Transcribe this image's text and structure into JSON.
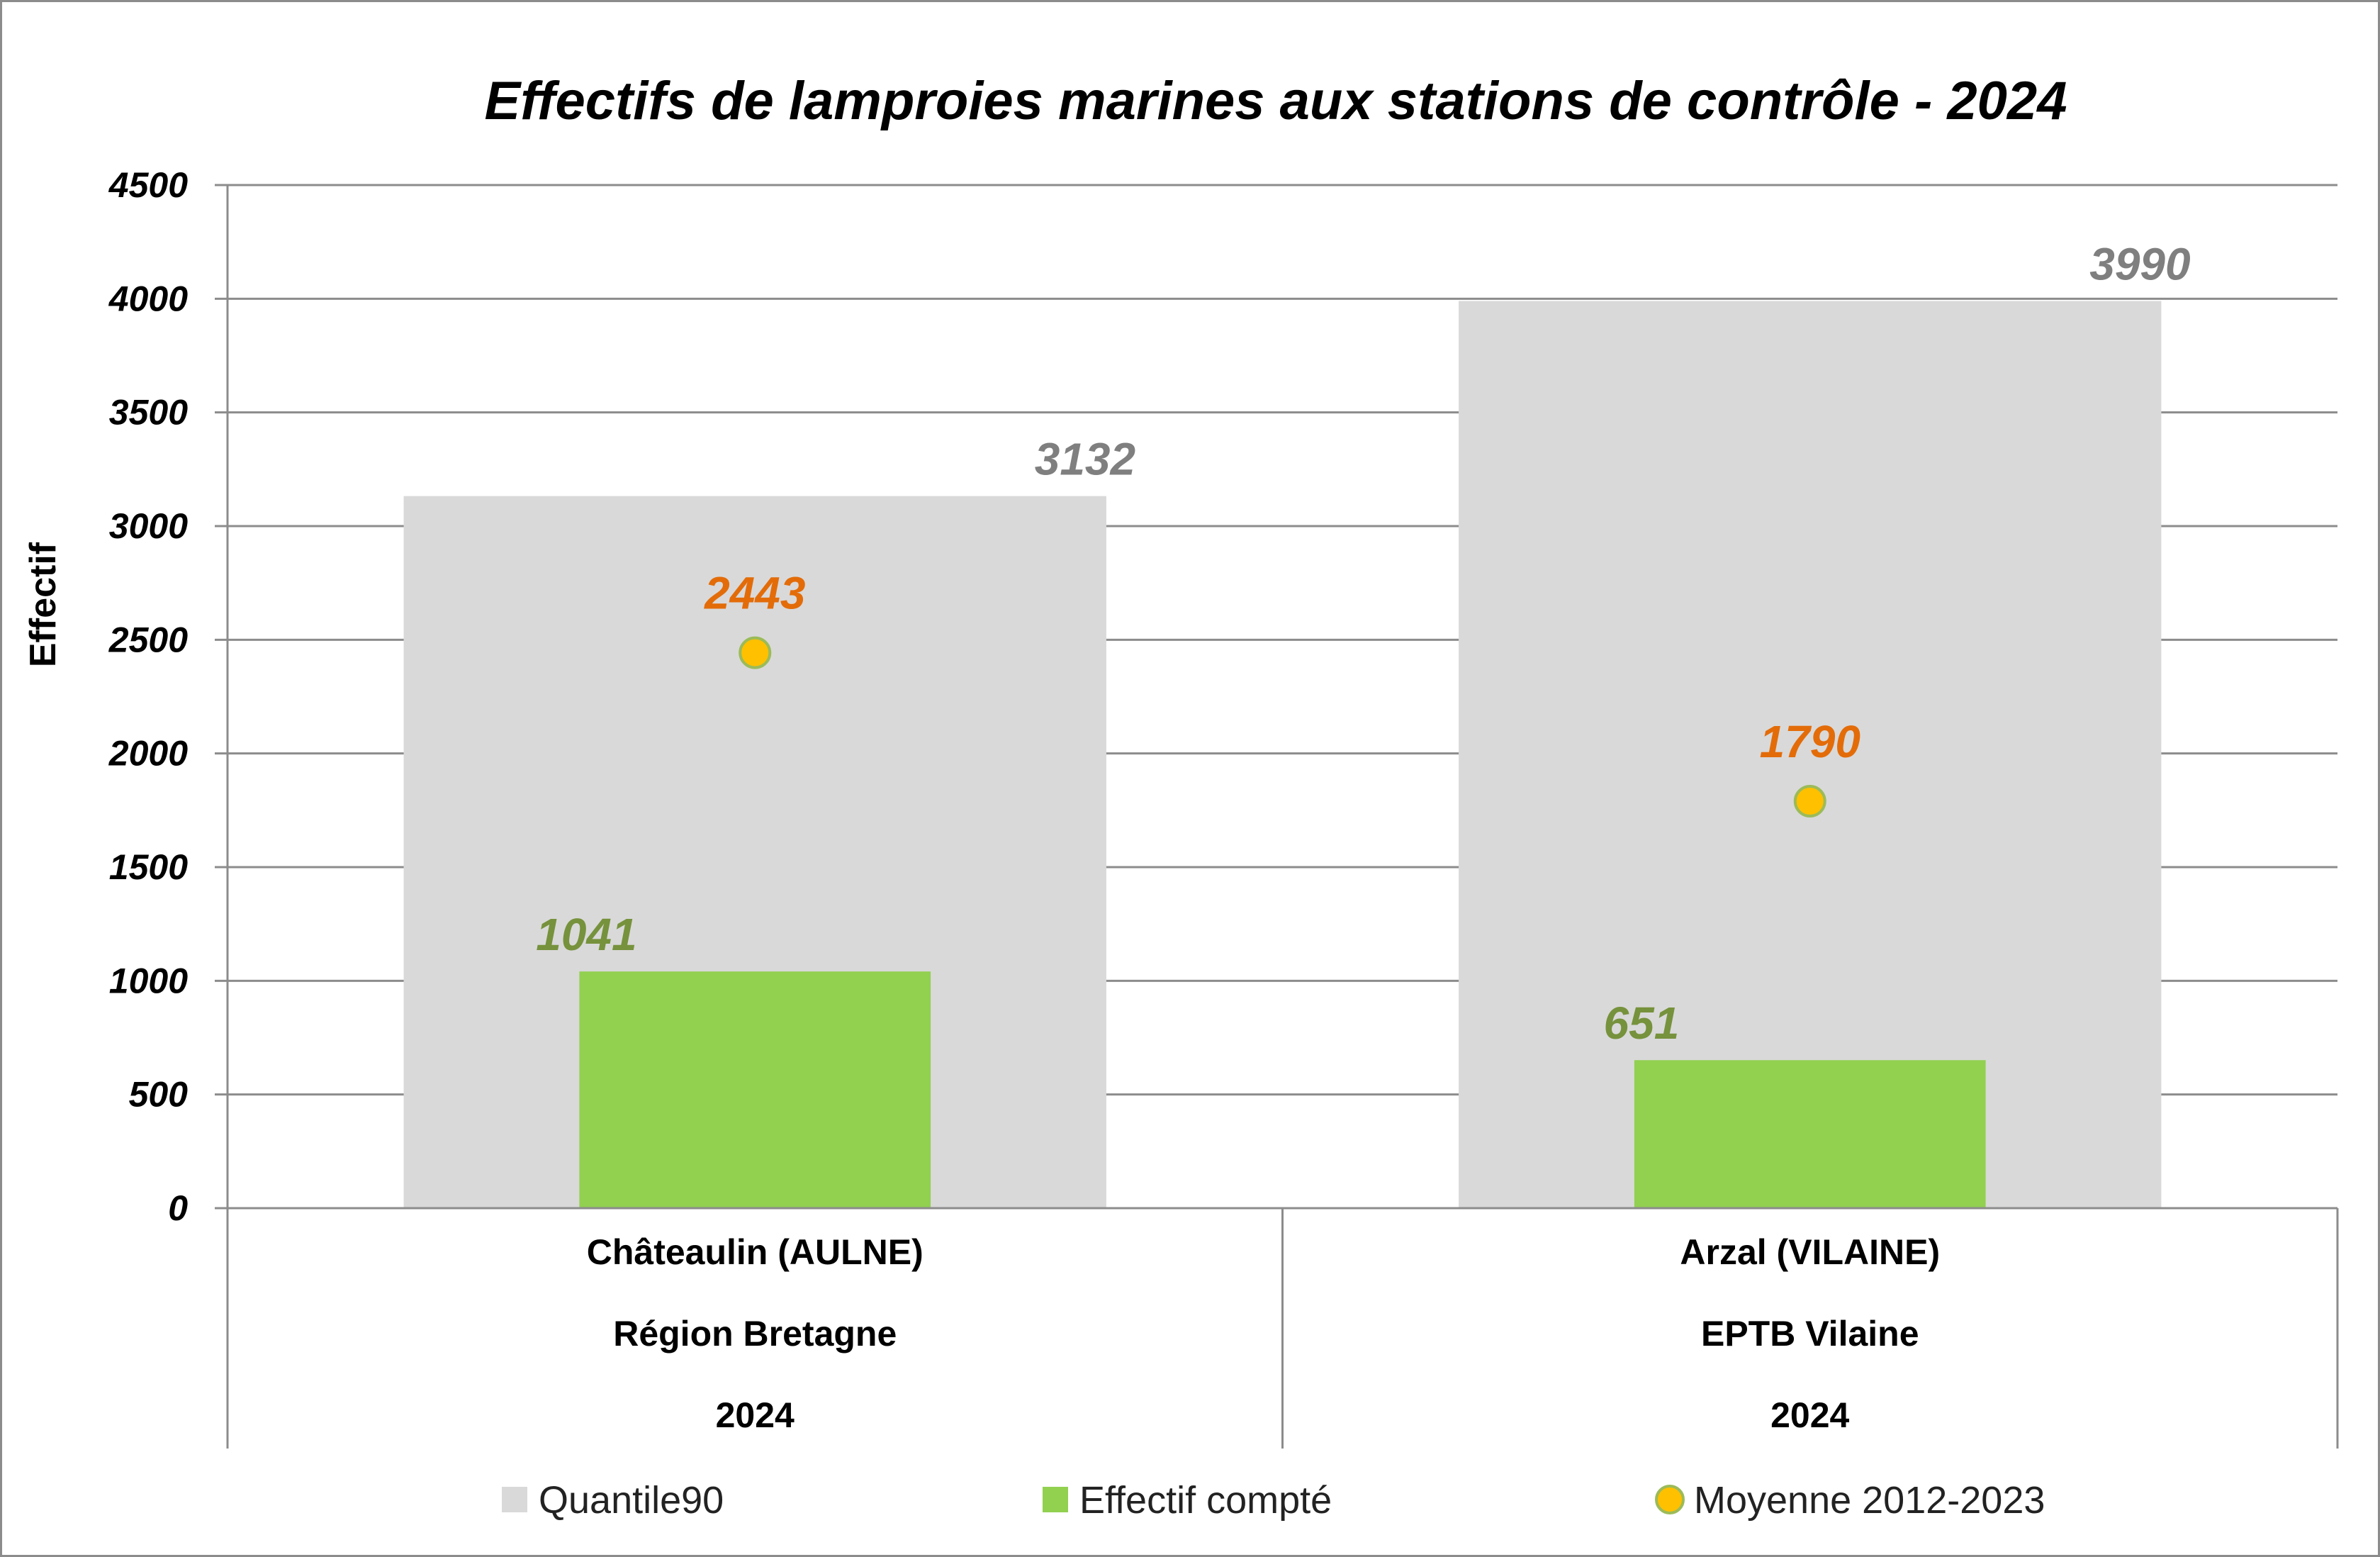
{
  "chart_data": {
    "type": "bar",
    "title": "Effectifs de lamproies marines aux stations de contrôle - 2024",
    "ylabel": "Effectif",
    "xlabel": "",
    "ylim": [
      0,
      4500
    ],
    "yticks": [
      0,
      500,
      1000,
      1500,
      2000,
      2500,
      3000,
      3500,
      4000,
      4500
    ],
    "grid": true,
    "legend_position": "bottom",
    "categories": [
      {
        "lines": [
          "Châteaulin (AULNE)",
          "Région Bretagne",
          "2024"
        ]
      },
      {
        "lines": [
          "Arzal (VILAINE)",
          "EPTB Vilaine",
          "2024"
        ]
      }
    ],
    "series": [
      {
        "name": "Quantile90",
        "kind": "bar",
        "color": "#d9d9d9",
        "label_color": "#7f7f7f",
        "values": [
          3132,
          3990
        ]
      },
      {
        "name": "Effectif compté",
        "kind": "bar",
        "color": "#92d050",
        "label_color": "#76923c",
        "values": [
          1041,
          651
        ]
      },
      {
        "name": "Moyenne 2012-2023",
        "kind": "marker",
        "color": "#ffc000",
        "stroke": "#9bbb59",
        "label_color": "#e36c09",
        "values": [
          2443,
          1790
        ]
      }
    ]
  }
}
